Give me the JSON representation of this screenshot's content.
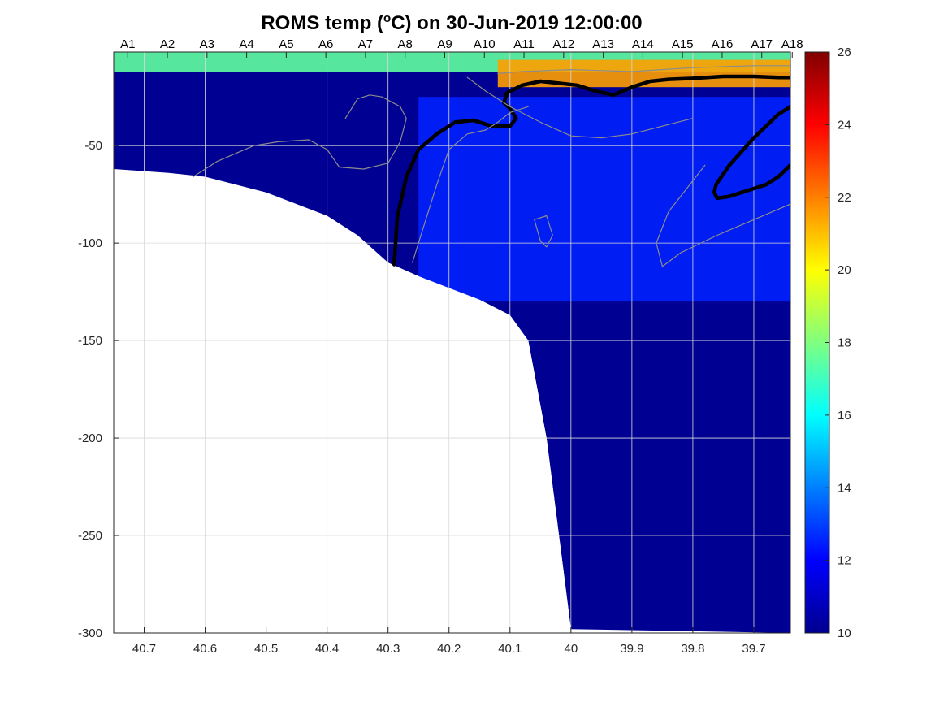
{
  "chart_data": {
    "type": "heatmap",
    "title_main": "ROMS temp (",
    "title_sup": "o",
    "title_rest": "C) on 30-Jun-2019 12:00:00",
    "xlabel": "",
    "ylabel": "",
    "x_direction": "reversed",
    "xlim": [
      40.75,
      39.64
    ],
    "ylim": [
      -300,
      -2
    ],
    "x_ticks": [
      40.7,
      40.6,
      40.5,
      40.4,
      40.3,
      40.2,
      40.1,
      40,
      39.9,
      39.8,
      39.7
    ],
    "x_tick_labels": [
      "40.7",
      "40.6",
      "40.5",
      "40.4",
      "40.3",
      "40.2",
      "40.1",
      "40",
      "39.9",
      "39.8",
      "39.7"
    ],
    "y_ticks": [
      -300,
      -250,
      -200,
      -150,
      -100,
      -50
    ],
    "y_tick_labels": [
      "-300",
      "-250",
      "-200",
      "-150",
      "-100",
      "-50"
    ],
    "stations": {
      "labels": [
        "A1",
        "A2",
        "A3",
        "A4",
        "A5",
        "A6",
        "A7",
        "A8",
        "A9",
        "A10",
        "A11",
        "A12",
        "A13",
        "A14",
        "A15",
        "A16",
        "A17",
        "A18"
      ],
      "x": [
        40.727,
        40.662,
        40.597,
        40.532,
        40.467,
        40.402,
        40.337,
        40.272,
        40.207,
        40.142,
        40.077,
        40.012,
        39.947,
        39.882,
        39.817,
        39.752,
        39.687,
        39.637
      ]
    },
    "grid": true,
    "colorbar": {
      "colormap": "jet",
      "range": [
        10,
        26
      ],
      "ticks": [
        10,
        12,
        14,
        16,
        18,
        20,
        22,
        24,
        26
      ],
      "tick_labels": [
        "10",
        "12",
        "14",
        "16",
        "18",
        "20",
        "22",
        "24",
        "26"
      ]
    },
    "bathymetry": {
      "x": [
        40.75,
        40.66,
        40.6,
        40.5,
        40.4,
        40.35,
        40.3,
        40.25,
        40.2,
        40.15,
        40.1,
        40.07,
        40.04,
        40.0
      ],
      "depth": [
        -62,
        -64,
        -66,
        -74,
        -86,
        -96,
        -110,
        -117,
        -123,
        -129,
        -137,
        -150,
        -200,
        -298
      ]
    },
    "temperature_features": [
      {
        "feature": "surface warm layer",
        "x_range": [
          40.75,
          39.64
        ],
        "depth_range": [
          -2,
          -12
        ],
        "temp": 17.5
      },
      {
        "feature": "warm core",
        "x_range": [
          40.12,
          39.64
        ],
        "depth_range": [
          -6,
          -20
        ],
        "temp": 21.5
      },
      {
        "feature": "cold bottom layer",
        "x_range": [
          40.75,
          40.25
        ],
        "depth_range": [
          -20,
          -115
        ],
        "temp": 10.3
      },
      {
        "feature": "intermediate cool water",
        "x_range": [
          40.25,
          39.64
        ],
        "depth_range": [
          -25,
          -130
        ],
        "temp": 12.5
      },
      {
        "feature": "deep water",
        "x_range": [
          40.05,
          39.64
        ],
        "depth_range": [
          -130,
          -300
        ],
        "temp": 10.3
      }
    ],
    "contours": [
      {
        "name": "bold isotherm surface",
        "style": "bold",
        "x": [
          39.64,
          39.66,
          39.7,
          39.75,
          39.8,
          39.84,
          39.87,
          39.9,
          39.93,
          39.96,
          39.99,
          40.02,
          40.05,
          40.08,
          40.105,
          40.11,
          40.1,
          40.09,
          40.1,
          40.13,
          40.16,
          40.19,
          40.22,
          40.25,
          40.27,
          40.285,
          40.29
        ],
        "depth": [
          -15,
          -15,
          -14.5,
          -14.5,
          -15.5,
          -16,
          -17,
          -20,
          -24,
          -22,
          -19,
          -18,
          -17,
          -19,
          -23,
          -28,
          -31,
          -36,
          -40,
          -40,
          -37,
          -38,
          -44,
          -52,
          -66,
          -87,
          -111
        ]
      },
      {
        "name": "bold isotherm right",
        "style": "bold",
        "x": [
          39.64,
          39.66,
          39.68,
          39.7,
          39.72,
          39.74,
          39.76,
          39.765,
          39.762,
          39.74,
          39.72,
          39.7,
          39.68,
          39.66,
          39.645,
          39.64
        ],
        "depth": [
          -60,
          -66,
          -70,
          -72,
          -74,
          -76,
          -77,
          -74,
          -70,
          -60,
          -53,
          -46,
          -40,
          -34,
          -31,
          -30
        ]
      },
      {
        "name": "thin isotherm surface",
        "style": "thin",
        "x": [
          40.12,
          40.08,
          40.0,
          39.95,
          39.9,
          39.85,
          39.8,
          39.75,
          39.7,
          39.64
        ],
        "depth": [
          -13,
          -12,
          -11,
          -11.5,
          -12,
          -11,
          -10,
          -9.5,
          -9,
          -9
        ]
      },
      {
        "name": "thin isotherm left",
        "style": "thin",
        "x": [
          40.62,
          40.58,
          40.52,
          40.48,
          40.43,
          40.4,
          40.38,
          40.34,
          40.3,
          40.28,
          40.27,
          40.28,
          40.31,
          40.33,
          40.35,
          40.37
        ],
        "depth": [
          -66,
          -58,
          -50,
          -48,
          -47,
          -52,
          -61,
          -62,
          -59,
          -48,
          -36,
          -30,
          -25,
          -24,
          -26,
          -36
        ]
      },
      {
        "name": "thin isotherm mid",
        "style": "thin",
        "x": [
          40.26,
          40.24,
          40.22,
          40.2,
          40.17,
          40.14,
          40.12,
          40.1,
          40.07
        ],
        "depth": [
          -110,
          -90,
          -70,
          -52,
          -44,
          -42,
          -38,
          -33,
          -30
        ]
      },
      {
        "name": "thin isotherm blob",
        "style": "thin",
        "x": [
          40.06,
          40.04,
          40.03,
          40.04,
          40.05,
          40.06
        ],
        "depth": [
          -88,
          -86,
          -96,
          -102,
          -99,
          -88
        ]
      },
      {
        "name": "thin isotherm right lower",
        "style": "thin",
        "x": [
          39.64,
          39.7,
          39.76,
          39.82,
          39.85,
          39.86,
          39.84,
          39.81,
          39.78
        ],
        "depth": [
          -80,
          -88,
          -96,
          -105,
          -112,
          -100,
          -84,
          -72,
          -60
        ]
      },
      {
        "name": "thin isotherm upper band",
        "style": "thin",
        "x": [
          40.17,
          40.14,
          40.1,
          40.05,
          40.0,
          39.95,
          39.9,
          39.85,
          39.8
        ],
        "depth": [
          -15,
          -22,
          -30,
          -38,
          -45,
          -46,
          -44,
          -40,
          -36
        ]
      }
    ]
  }
}
